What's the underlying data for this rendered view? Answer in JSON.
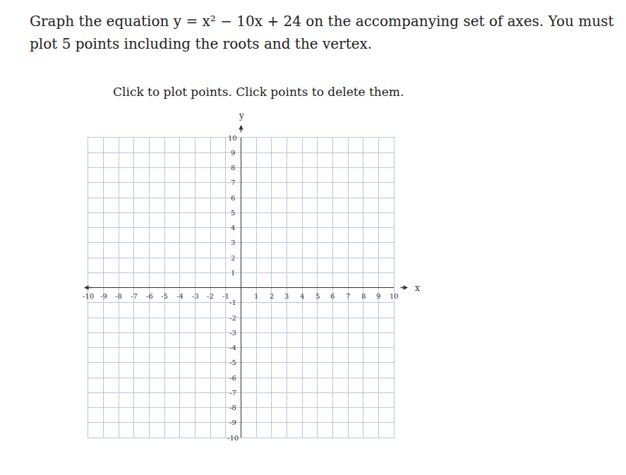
{
  "question": "Graph the equation y = x² − 10x + 24 on the accompanying set of axes. You must plot 5 points including the roots and the vertex.",
  "instruction": "Click to plot points. Click points to delete them.",
  "chart_data": {
    "type": "scatter",
    "x": [],
    "values": [],
    "xlabel": "x",
    "ylabel": "y",
    "xlim": [
      -10,
      10
    ],
    "ylim": [
      -10,
      10
    ],
    "xticks": [
      -10,
      -9,
      -8,
      -7,
      -6,
      -5,
      -4,
      -3,
      -2,
      -1,
      1,
      2,
      3,
      4,
      5,
      6,
      7,
      8,
      9,
      10
    ],
    "yticks": [
      -10,
      -9,
      -8,
      -7,
      -6,
      -5,
      -4,
      -3,
      -2,
      -1,
      1,
      2,
      3,
      4,
      5,
      6,
      7,
      8,
      9,
      10
    ],
    "grid": true
  }
}
